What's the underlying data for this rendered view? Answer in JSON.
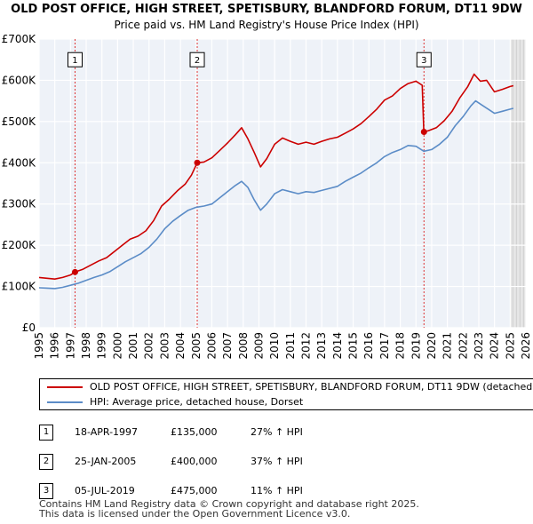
{
  "chart_data": {
    "type": "line",
    "title": "OLD POST OFFICE, HIGH STREET, SPETISBURY, BLANDFORD FORUM, DT11 9DW",
    "subtitle": "Price paid vs. HM Land Registry's House Price Index (HPI)",
    "xlim": [
      1995,
      2026
    ],
    "ylim": [
      0,
      700000
    ],
    "x_ticks": [
      "1995",
      "1996",
      "1997",
      "1998",
      "1999",
      "2000",
      "2001",
      "2002",
      "2003",
      "2004",
      "2005",
      "2006",
      "2007",
      "2008",
      "2009",
      "2010",
      "2011",
      "2012",
      "2013",
      "2014",
      "2015",
      "2016",
      "2017",
      "2018",
      "2019",
      "2020",
      "2021",
      "2022",
      "2023",
      "2024",
      "2025",
      "2026"
    ],
    "y_ticks": [
      {
        "value": 0,
        "label": "£0"
      },
      {
        "value": 100000,
        "label": "£100K"
      },
      {
        "value": 200000,
        "label": "£200K"
      },
      {
        "value": 300000,
        "label": "£300K"
      },
      {
        "value": 400000,
        "label": "£400K"
      },
      {
        "value": 500000,
        "label": "£500K"
      },
      {
        "value": 600000,
        "label": "£600K"
      },
      {
        "value": 700000,
        "label": "£700K"
      }
    ],
    "grid": true,
    "forecast_start": 2025.0,
    "series": [
      {
        "name": "OLD POST OFFICE, HIGH STREET, SPETISBURY, BLANDFORD FORUM, DT11 9DW (detached house)",
        "color": "#cc0000",
        "points": [
          [
            1995.0,
            122000
          ],
          [
            1995.5,
            120000
          ],
          [
            1996.0,
            118000
          ],
          [
            1996.5,
            122000
          ],
          [
            1997.0,
            128000
          ],
          [
            1997.29,
            135000
          ],
          [
            1997.8,
            142000
          ],
          [
            1998.3,
            152000
          ],
          [
            1998.8,
            162000
          ],
          [
            1999.3,
            170000
          ],
          [
            1999.8,
            185000
          ],
          [
            2000.3,
            200000
          ],
          [
            2000.8,
            215000
          ],
          [
            2001.3,
            222000
          ],
          [
            2001.8,
            235000
          ],
          [
            2002.3,
            260000
          ],
          [
            2002.8,
            295000
          ],
          [
            2003.3,
            312000
          ],
          [
            2003.8,
            332000
          ],
          [
            2004.3,
            348000
          ],
          [
            2004.7,
            370000
          ],
          [
            2005.07,
            400000
          ],
          [
            2005.5,
            402000
          ],
          [
            2006.0,
            412000
          ],
          [
            2006.5,
            430000
          ],
          [
            2007.0,
            448000
          ],
          [
            2007.5,
            468000
          ],
          [
            2007.9,
            485000
          ],
          [
            2008.3,
            458000
          ],
          [
            2008.7,
            425000
          ],
          [
            2009.1,
            390000
          ],
          [
            2009.5,
            410000
          ],
          [
            2010.0,
            445000
          ],
          [
            2010.5,
            460000
          ],
          [
            2011.0,
            452000
          ],
          [
            2011.5,
            445000
          ],
          [
            2012.0,
            450000
          ],
          [
            2012.5,
            445000
          ],
          [
            2013.0,
            452000
          ],
          [
            2013.5,
            458000
          ],
          [
            2014.0,
            462000
          ],
          [
            2014.5,
            472000
          ],
          [
            2015.0,
            482000
          ],
          [
            2015.5,
            495000
          ],
          [
            2016.0,
            512000
          ],
          [
            2016.5,
            530000
          ],
          [
            2017.0,
            552000
          ],
          [
            2017.5,
            562000
          ],
          [
            2018.0,
            580000
          ],
          [
            2018.5,
            592000
          ],
          [
            2019.0,
            598000
          ],
          [
            2019.4,
            588000
          ],
          [
            2019.5,
            475000
          ],
          [
            2019.8,
            478000
          ],
          [
            2020.3,
            485000
          ],
          [
            2020.8,
            502000
          ],
          [
            2021.3,
            525000
          ],
          [
            2021.8,
            558000
          ],
          [
            2022.3,
            585000
          ],
          [
            2022.7,
            615000
          ],
          [
            2023.1,
            598000
          ],
          [
            2023.5,
            600000
          ],
          [
            2024.0,
            572000
          ],
          [
            2024.5,
            578000
          ],
          [
            2025.0,
            585000
          ],
          [
            2025.2,
            587000
          ]
        ]
      },
      {
        "name": "HPI: Average price, detached house, Dorset",
        "color": "#5b8cc7",
        "points": [
          [
            1995.0,
            97000
          ],
          [
            1995.5,
            96000
          ],
          [
            1996.0,
            95000
          ],
          [
            1996.5,
            98000
          ],
          [
            1997.0,
            103000
          ],
          [
            1997.5,
            108000
          ],
          [
            1998.0,
            115000
          ],
          [
            1998.5,
            122000
          ],
          [
            1999.0,
            128000
          ],
          [
            1999.5,
            136000
          ],
          [
            2000.0,
            148000
          ],
          [
            2000.5,
            160000
          ],
          [
            2001.0,
            170000
          ],
          [
            2001.5,
            180000
          ],
          [
            2002.0,
            195000
          ],
          [
            2002.5,
            215000
          ],
          [
            2003.0,
            240000
          ],
          [
            2003.5,
            258000
          ],
          [
            2004.0,
            272000
          ],
          [
            2004.5,
            285000
          ],
          [
            2005.0,
            292000
          ],
          [
            2005.5,
            295000
          ],
          [
            2006.0,
            300000
          ],
          [
            2006.5,
            315000
          ],
          [
            2007.0,
            330000
          ],
          [
            2007.5,
            345000
          ],
          [
            2007.9,
            355000
          ],
          [
            2008.3,
            340000
          ],
          [
            2008.7,
            310000
          ],
          [
            2009.1,
            285000
          ],
          [
            2009.5,
            300000
          ],
          [
            2010.0,
            325000
          ],
          [
            2010.5,
            335000
          ],
          [
            2011.0,
            330000
          ],
          [
            2011.5,
            325000
          ],
          [
            2012.0,
            330000
          ],
          [
            2012.5,
            328000
          ],
          [
            2013.0,
            333000
          ],
          [
            2013.5,
            338000
          ],
          [
            2014.0,
            343000
          ],
          [
            2014.5,
            355000
          ],
          [
            2015.0,
            365000
          ],
          [
            2015.5,
            375000
          ],
          [
            2016.0,
            388000
          ],
          [
            2016.5,
            400000
          ],
          [
            2017.0,
            415000
          ],
          [
            2017.5,
            425000
          ],
          [
            2018.0,
            432000
          ],
          [
            2018.5,
            442000
          ],
          [
            2019.0,
            440000
          ],
          [
            2019.5,
            428000
          ],
          [
            2020.0,
            432000
          ],
          [
            2020.5,
            445000
          ],
          [
            2021.0,
            462000
          ],
          [
            2021.5,
            490000
          ],
          [
            2022.0,
            512000
          ],
          [
            2022.5,
            538000
          ],
          [
            2022.8,
            550000
          ],
          [
            2023.2,
            540000
          ],
          [
            2023.6,
            530000
          ],
          [
            2024.0,
            520000
          ],
          [
            2024.5,
            525000
          ],
          [
            2025.0,
            530000
          ],
          [
            2025.2,
            532000
          ]
        ]
      }
    ],
    "sale_markers": [
      {
        "id": "1",
        "x": 1997.29,
        "value": 135000
      },
      {
        "id": "2",
        "x": 2005.07,
        "value": 400000
      },
      {
        "id": "3",
        "x": 2019.51,
        "value": 475000
      }
    ],
    "marker_label_value": 650000
  },
  "legend": {
    "items": [
      {
        "label": "OLD POST OFFICE, HIGH STREET, SPETISBURY, BLANDFORD FORUM, DT11 9DW (detached house)",
        "color": "#cc0000"
      },
      {
        "label": "HPI: Average price, detached house, Dorset",
        "color": "#5b8cc7"
      }
    ]
  },
  "sales": [
    {
      "num": "1",
      "date": "18-APR-1997",
      "price": "£135,000",
      "hpi": "27% ↑ HPI"
    },
    {
      "num": "2",
      "date": "25-JAN-2005",
      "price": "£400,000",
      "hpi": "37% ↑ HPI"
    },
    {
      "num": "3",
      "date": "05-JUL-2019",
      "price": "£475,000",
      "hpi": "11% ↑ HPI"
    }
  ],
  "footer": "Contains HM Land Registry data © Crown copyright and database right 2025.\nThis data is licensed under the Open Government Licence v3.0."
}
